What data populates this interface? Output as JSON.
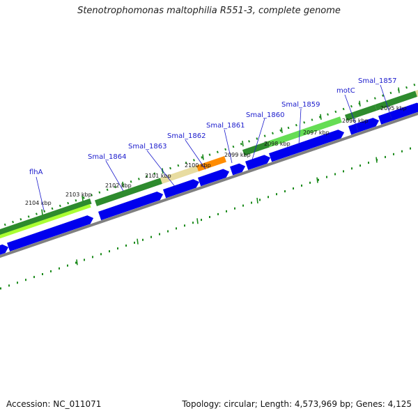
{
  "title": "Stenotrophomonas maltophilia R551-3, complete genome",
  "footer": {
    "accession": "Accession: NC_011071",
    "summary": "Topology: circular; Length: 4,573,969 bp; Genes: 4,125"
  },
  "colors": {
    "cds_blue": "#0000ee",
    "gene_green": "#2e8b2e",
    "gene_light_green": "#66dd55",
    "gene_lime": "#aaff33",
    "gene_tan": "#e8dca0",
    "gene_orange": "#ff8c00",
    "backbone_gray": "#808080",
    "tick_green": "#1a8a1a",
    "label_blue": "#1a1acc"
  },
  "kbp_labels": [
    "2104 kbp",
    "2103 kbp",
    "2102 kbp",
    "2101 kbp",
    "2100 kbp",
    "2099 kbp",
    "2098 kbp",
    "2097 kbp",
    "2096 kbp",
    "2095 kbp"
  ],
  "gene_labels": [
    "flhA",
    "Smal_1864",
    "Smal_1863",
    "Smal_1862",
    "Smal_1861",
    "Smal_1860",
    "Smal_1859",
    "motC",
    "Smal_1857"
  ]
}
